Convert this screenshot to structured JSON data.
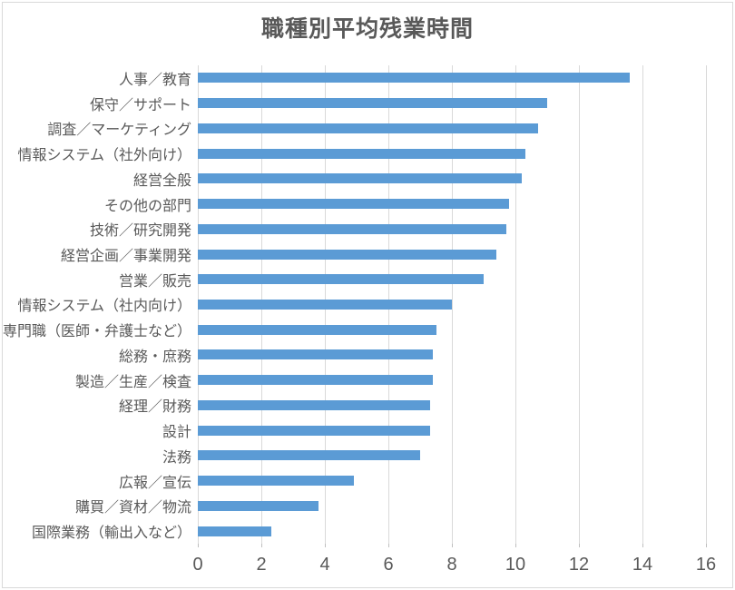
{
  "chart_data": {
    "type": "bar",
    "orientation": "horizontal",
    "title": "職種別平均残業時間",
    "categories": [
      "人事／教育",
      "保守／サポート",
      "調査／マーケティング",
      "情報システム（社外向け）",
      "経営全般",
      "その他の部門",
      "技術／研究開発",
      "経営企画／事業開発",
      "営業／販売",
      "情報システム（社内向け）",
      "専門職（医師・弁護士など）",
      "総務・庶務",
      "製造／生産／検査",
      "経理／財務",
      "設計",
      "法務",
      "広報／宣伝",
      "購買／資材／物流",
      "国際業務（輸出入など）"
    ],
    "values": [
      13.6,
      11.0,
      10.7,
      10.3,
      10.2,
      9.8,
      9.7,
      9.4,
      9.0,
      8.0,
      7.5,
      7.4,
      7.4,
      7.3,
      7.3,
      7.0,
      4.9,
      3.8,
      2.3
    ],
    "xlabel": "",
    "ylabel": "",
    "xlim": [
      0,
      16
    ],
    "x_ticks": [
      "0",
      "2",
      "4",
      "6",
      "8",
      "10",
      "12",
      "14",
      "16"
    ],
    "grid": "vertical-major",
    "legend": "none",
    "colors": {
      "bar": "#5B9BD5",
      "gridline": "#D9D9D9",
      "tick_mark": "#BFBFBF",
      "axis_text": "#595959",
      "title_text": "#595959",
      "chart_border": "#D9D9D9",
      "background": "#FFFFFF"
    }
  }
}
